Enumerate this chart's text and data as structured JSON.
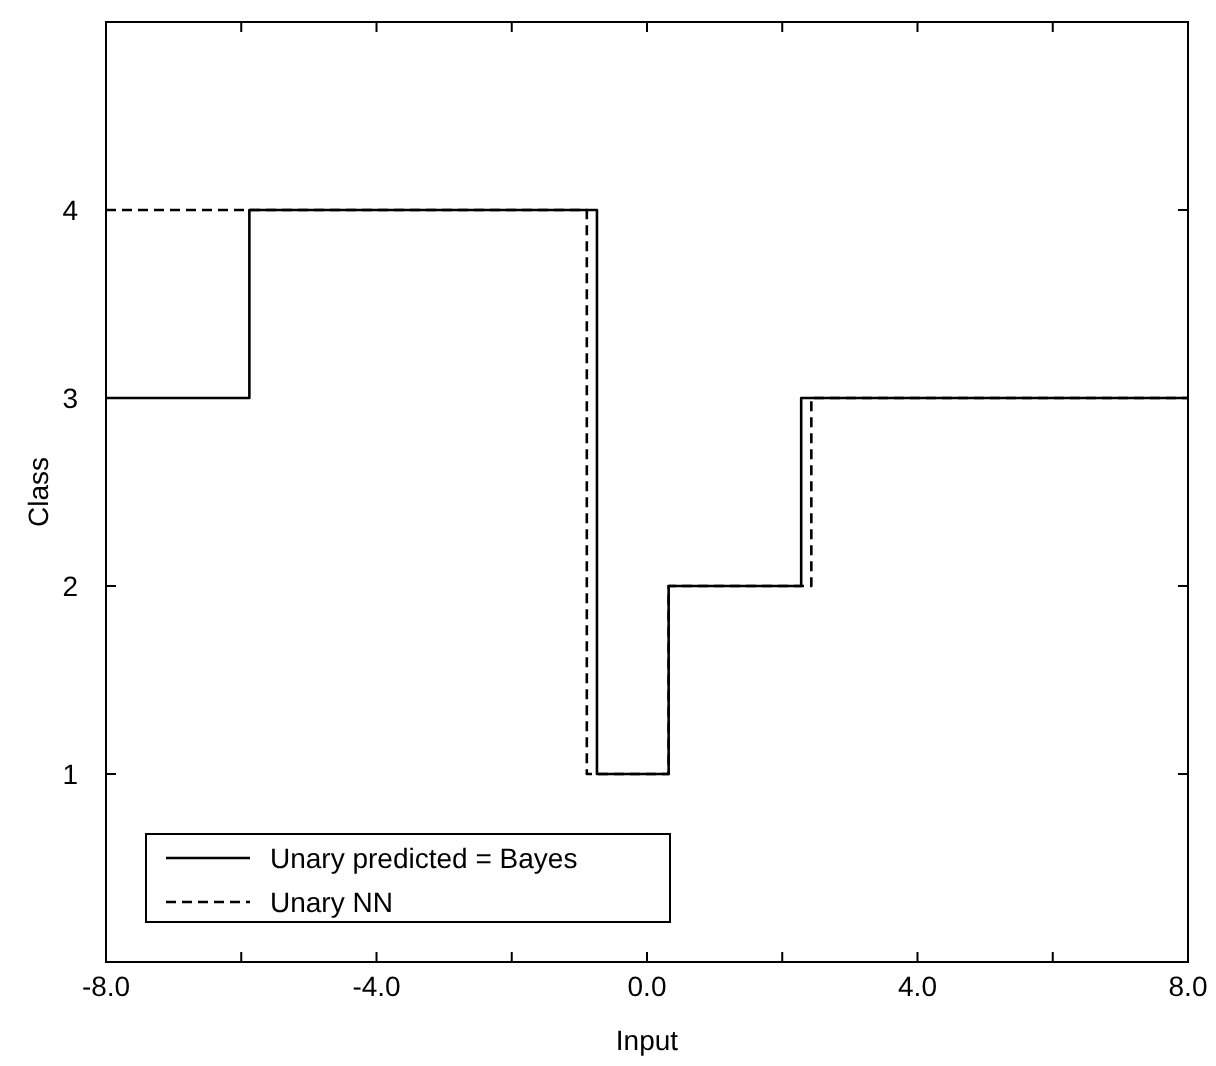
{
  "chart_data": {
    "type": "step",
    "xlabel": "Input",
    "ylabel": "Class",
    "xlim": [
      -8,
      8
    ],
    "ylim": [
      0,
      5
    ],
    "xticks": [
      {
        "value": -8,
        "label": "-8.0"
      },
      {
        "value": -6,
        "label": null
      },
      {
        "value": -4,
        "label": "-4.0"
      },
      {
        "value": -2,
        "label": null
      },
      {
        "value": 0,
        "label": "0.0"
      },
      {
        "value": 2,
        "label": null
      },
      {
        "value": 4,
        "label": "4.0"
      },
      {
        "value": 6,
        "label": null
      },
      {
        "value": 8,
        "label": "8.0"
      }
    ],
    "yticks": [
      1,
      2,
      3,
      4
    ],
    "grid": false,
    "legend": "bottom left",
    "series": [
      {
        "name": "Unary predicted = Bayes",
        "color": "#000000",
        "line_style": "solid",
        "x": [
          -8,
          -5.88,
          -0.74,
          0.32,
          2.28,
          8
        ],
        "values": [
          3,
          4,
          1,
          2,
          3,
          3
        ]
      },
      {
        "name": "Unary NN",
        "color": "#000000",
        "line_style": "dashed",
        "x": [
          -8,
          -0.89,
          0.32,
          2.43,
          8
        ],
        "values": [
          4,
          1,
          2,
          3,
          3
        ]
      }
    ]
  }
}
